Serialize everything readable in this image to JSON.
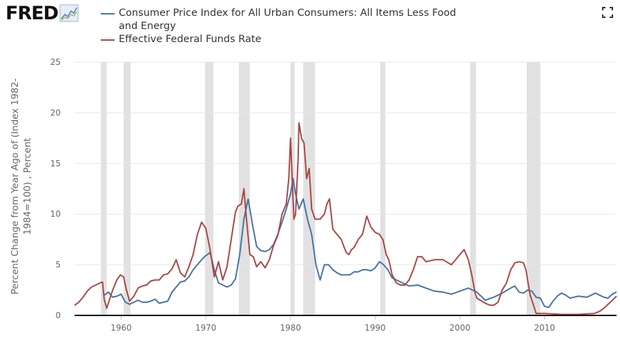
{
  "logo": {
    "text": "FRED"
  },
  "legend": [
    {
      "label": "Consumer Price Index for All Urban Consumers: All Items Less Food and Energy",
      "color": "#4572a7"
    },
    {
      "label": "Effective Federal Funds Rate",
      "color": "#aa4643"
    }
  ],
  "icons": {
    "logo_graph": "line-graph-icon",
    "expand": "expand-icon"
  },
  "chart_data": {
    "type": "line",
    "title": "",
    "xlabel": "",
    "ylabel": "Percent Change from Year Ago of (Index 1982-1984=100) , Percent",
    "xlim": [
      1954.5,
      2018.5
    ],
    "ylim": [
      0,
      25
    ],
    "x_ticks": [
      1960,
      1970,
      1980,
      1990,
      2000,
      2010
    ],
    "y_ticks": [
      0,
      5,
      10,
      15,
      20,
      25
    ],
    "grid": true,
    "recessions": [
      [
        1957.6,
        1958.3
      ],
      [
        1960.3,
        1961.1
      ],
      [
        1969.9,
        1970.9
      ],
      [
        1973.9,
        1975.2
      ],
      [
        1980.0,
        1980.5
      ],
      [
        1981.5,
        1982.9
      ],
      [
        1990.6,
        1991.2
      ],
      [
        2001.2,
        2001.9
      ],
      [
        2007.9,
        2009.5
      ]
    ],
    "series": [
      {
        "name": "Consumer Price Index for All Urban Consumers: All Items Less Food and Energy",
        "color": "#4572a7",
        "x": [
          1958.0,
          1958.5,
          1959.0,
          1959.5,
          1960.0,
          1960.5,
          1961.0,
          1961.5,
          1962.0,
          1962.5,
          1963.0,
          1963.5,
          1964.0,
          1964.5,
          1965.0,
          1965.5,
          1966.0,
          1966.5,
          1967.0,
          1967.5,
          1968.0,
          1968.5,
          1969.0,
          1969.5,
          1970.0,
          1970.5,
          1971.0,
          1971.5,
          1972.0,
          1972.5,
          1973.0,
          1973.5,
          1974.0,
          1974.5,
          1975.0,
          1975.5,
          1976.0,
          1976.5,
          1977.0,
          1977.5,
          1978.0,
          1978.5,
          1979.0,
          1979.5,
          1980.0,
          1980.3,
          1980.6,
          1981.0,
          1981.5,
          1982.0,
          1982.5,
          1983.0,
          1983.5,
          1984.0,
          1984.5,
          1985.0,
          1985.5,
          1986.0,
          1986.5,
          1987.0,
          1987.5,
          1988.0,
          1988.5,
          1989.0,
          1989.5,
          1990.0,
          1990.5,
          1991.0,
          1991.5,
          1992.0,
          1992.5,
          1993.0,
          1994.0,
          1995.0,
          1996.0,
          1997.0,
          1998.0,
          1999.0,
          2000.0,
          2001.0,
          2002.0,
          2003.0,
          2004.0,
          2005.0,
          2006.0,
          2006.5,
          2007.0,
          2007.5,
          2008.0,
          2008.5,
          2009.0,
          2009.5,
          2010.0,
          2010.5,
          2011.0,
          2011.5,
          2012.0,
          2012.5,
          2013.0,
          2014.0,
          2015.0,
          2016.0,
          2017.0,
          2017.5,
          2018.0,
          2018.5
        ],
        "values": [
          2.0,
          2.3,
          1.8,
          1.9,
          2.1,
          1.3,
          1.1,
          1.3,
          1.5,
          1.3,
          1.3,
          1.4,
          1.6,
          1.2,
          1.3,
          1.4,
          2.3,
          2.8,
          3.3,
          3.4,
          3.8,
          4.5,
          5.0,
          5.5,
          5.9,
          6.2,
          4.5,
          3.2,
          3.0,
          2.8,
          3.0,
          3.6,
          6.0,
          9.5,
          11.5,
          9.0,
          6.8,
          6.4,
          6.3,
          6.5,
          7.0,
          8.0,
          9.2,
          10.5,
          12.0,
          13.5,
          12.0,
          10.5,
          11.5,
          9.5,
          8.0,
          5.0,
          3.5,
          5.0,
          5.0,
          4.5,
          4.2,
          4.0,
          4.0,
          4.0,
          4.3,
          4.3,
          4.5,
          4.5,
          4.4,
          4.7,
          5.3,
          5.0,
          4.5,
          3.7,
          3.5,
          3.3,
          2.9,
          3.0,
          2.7,
          2.4,
          2.3,
          2.1,
          2.4,
          2.7,
          2.3,
          1.5,
          1.8,
          2.2,
          2.7,
          2.9,
          2.3,
          2.2,
          2.5,
          2.4,
          1.8,
          1.7,
          0.9,
          0.8,
          1.4,
          1.9,
          2.2,
          2.0,
          1.7,
          1.9,
          1.8,
          2.2,
          1.8,
          1.7,
          2.1,
          2.3
        ]
      },
      {
        "name": "Effective Federal Funds Rate",
        "color": "#aa4643",
        "x": [
          1954.5,
          1955.0,
          1955.5,
          1956.0,
          1956.5,
          1957.0,
          1957.5,
          1957.8,
          1958.0,
          1958.3,
          1958.6,
          1959.0,
          1959.5,
          1959.9,
          1960.3,
          1960.6,
          1961.0,
          1961.5,
          1962.0,
          1962.5,
          1963.0,
          1963.5,
          1964.0,
          1964.5,
          1965.0,
          1965.5,
          1966.0,
          1966.5,
          1967.0,
          1967.5,
          1968.0,
          1968.5,
          1969.0,
          1969.5,
          1970.0,
          1970.5,
          1971.0,
          1971.5,
          1972.0,
          1972.5,
          1973.0,
          1973.5,
          1973.8,
          1974.2,
          1974.5,
          1974.8,
          1975.2,
          1975.6,
          1976.0,
          1976.5,
          1977.0,
          1977.5,
          1978.0,
          1978.5,
          1979.0,
          1979.5,
          1979.8,
          1980.0,
          1980.2,
          1980.4,
          1980.6,
          1980.9,
          1981.0,
          1981.3,
          1981.6,
          1981.9,
          1982.2,
          1982.5,
          1982.9,
          1983.5,
          1984.0,
          1984.3,
          1984.6,
          1985.0,
          1985.5,
          1986.0,
          1986.3,
          1986.6,
          1986.9,
          1987.2,
          1987.5,
          1988.0,
          1988.5,
          1989.0,
          1989.5,
          1990.0,
          1990.5,
          1990.9,
          1991.3,
          1991.6,
          1992.0,
          1992.5,
          1993.0,
          1993.5,
          1994.0,
          1994.5,
          1995.0,
          1995.5,
          1996.0,
          1997.0,
          1998.0,
          1999.0,
          2000.0,
          2000.5,
          2001.0,
          2001.4,
          2001.8,
          2002.0,
          2003.0,
          2003.6,
          2004.0,
          2004.5,
          2005.0,
          2005.5,
          2006.0,
          2006.5,
          2007.0,
          2007.5,
          2007.8,
          2008.0,
          2008.3,
          2008.7,
          2009.0,
          2010.0,
          2012.0,
          2014.0,
          2015.9,
          2016.5,
          2017.0,
          2017.5,
          2018.0,
          2018.5
        ],
        "values": [
          1.0,
          1.3,
          1.8,
          2.4,
          2.8,
          3.0,
          3.2,
          3.3,
          1.6,
          0.7,
          1.5,
          2.5,
          3.5,
          4.0,
          3.8,
          2.6,
          1.4,
          1.9,
          2.7,
          2.9,
          3.0,
          3.4,
          3.5,
          3.5,
          4.0,
          4.1,
          4.6,
          5.5,
          4.2,
          3.8,
          4.8,
          6.0,
          8.0,
          9.2,
          8.6,
          6.5,
          3.8,
          5.3,
          3.5,
          4.8,
          7.5,
          10.2,
          10.8,
          11.0,
          12.5,
          9.5,
          6.0,
          5.8,
          4.8,
          5.3,
          4.7,
          5.5,
          6.9,
          7.9,
          10.0,
          11.0,
          13.5,
          17.5,
          13.5,
          9.5,
          10.0,
          15.5,
          19.0,
          17.5,
          17.0,
          13.5,
          14.5,
          10.5,
          9.5,
          9.5,
          10.0,
          11.0,
          11.5,
          8.5,
          8.0,
          7.5,
          6.8,
          6.2,
          6.0,
          6.5,
          6.7,
          7.5,
          8.0,
          9.8,
          8.7,
          8.2,
          8.0,
          7.5,
          6.0,
          5.5,
          4.0,
          3.2,
          3.0,
          3.0,
          3.5,
          4.5,
          5.8,
          5.8,
          5.3,
          5.5,
          5.5,
          5.0,
          6.0,
          6.5,
          5.5,
          4.0,
          2.2,
          1.7,
          1.2,
          1.0,
          1.0,
          1.3,
          2.5,
          3.2,
          4.5,
          5.2,
          5.3,
          5.2,
          4.5,
          3.5,
          2.0,
          1.0,
          0.2,
          0.2,
          0.1,
          0.1,
          0.2,
          0.4,
          0.7,
          1.1,
          1.5,
          1.9
        ]
      }
    ]
  }
}
